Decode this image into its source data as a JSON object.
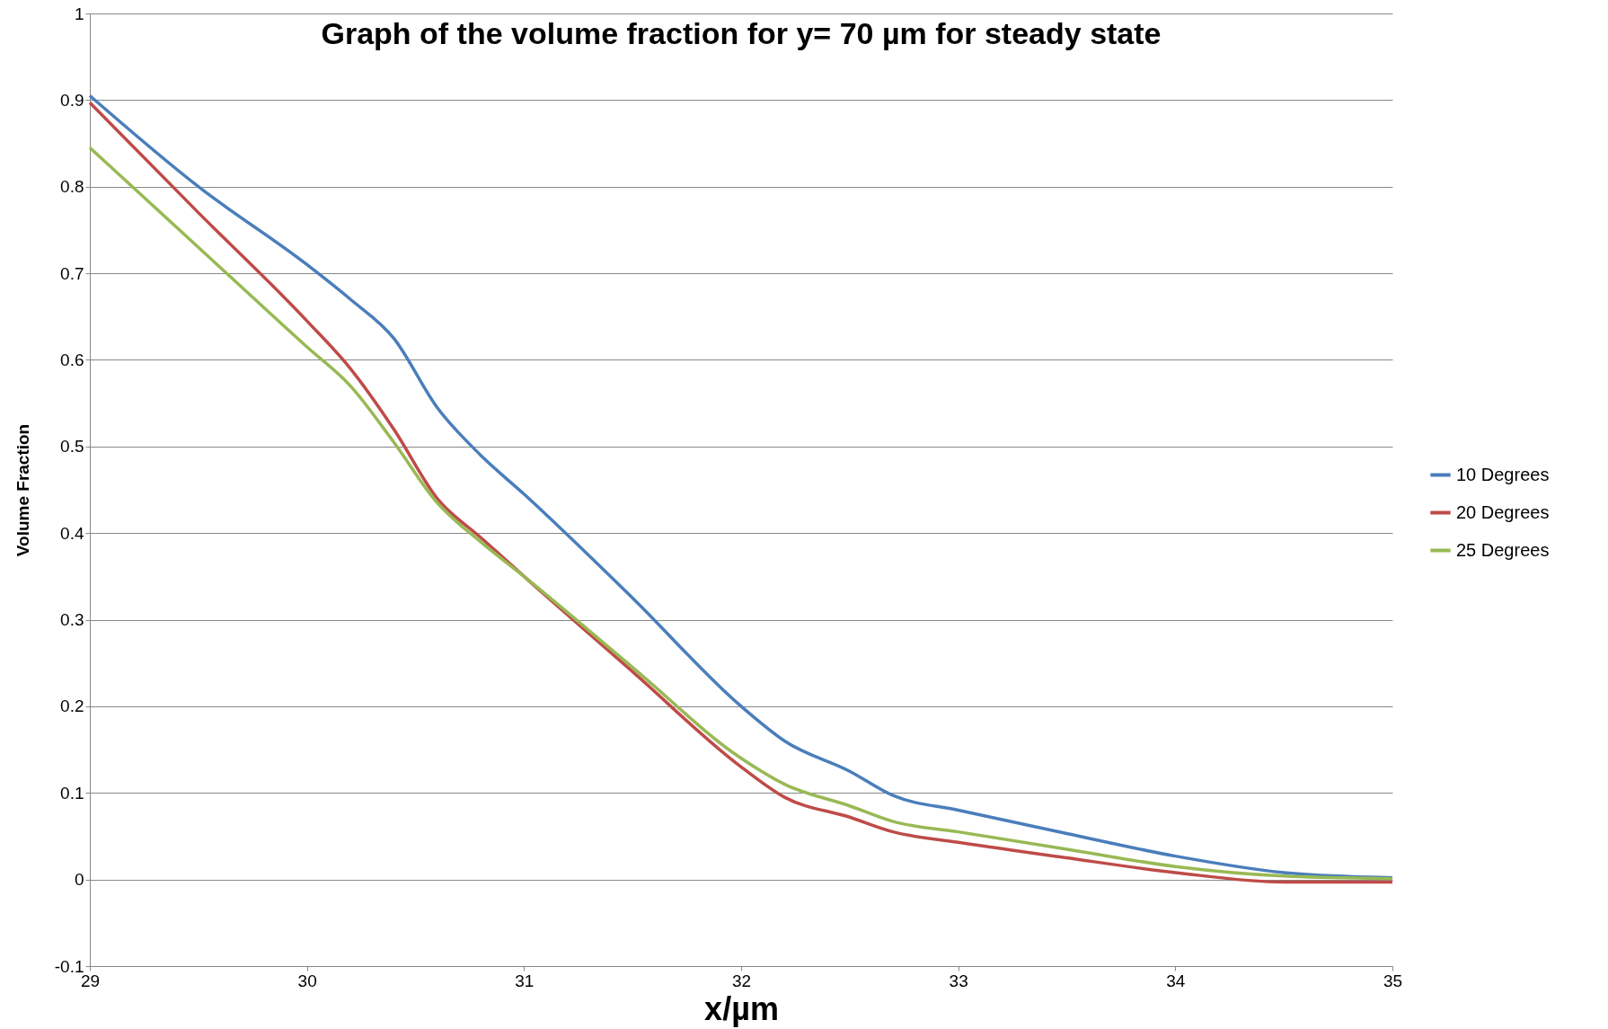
{
  "chart_data": {
    "type": "line",
    "title": "Graph of the volume fraction for y= 70 µm for steady state",
    "xlabel": "x/µm",
    "ylabel": "Volume Fraction",
    "xlim": [
      29,
      35
    ],
    "xticks": [
      29,
      30,
      31,
      32,
      33,
      34,
      35
    ],
    "ylim": [
      -0.1,
      1
    ],
    "yticks": [
      -0.1,
      0,
      0.1,
      0.2,
      0.3,
      0.4,
      0.5,
      0.6,
      0.7,
      0.8,
      0.9,
      1
    ],
    "grid": "y",
    "legend": "right",
    "marker": "none",
    "line_style": "solid",
    "x": [
      29,
      29.5,
      30,
      30.2,
      30.4,
      30.6,
      30.8,
      31,
      31.5,
      32,
      32.2,
      32.5,
      32.7,
      33,
      33.5,
      34,
      34.5,
      35
    ],
    "series": [
      {
        "name": "10 Degrees",
        "color": "#4a7ebb",
        "values": [
          0.905,
          0.8,
          0.71,
          0.67,
          0.625,
          0.545,
          0.49,
          0.445,
          0.325,
          0.2,
          0.16,
          0.125,
          0.097,
          0.08,
          0.053,
          0.027,
          0.008,
          0.002
        ]
      },
      {
        "name": "20 Degrees",
        "color": "#be4b48",
        "values": [
          0.897,
          0.77,
          0.645,
          0.59,
          0.52,
          0.44,
          0.395,
          0.35,
          0.24,
          0.13,
          0.095,
          0.072,
          0.055,
          0.043,
          0.025,
          0.008,
          -0.003,
          -0.003
        ]
      },
      {
        "name": "25 Degrees",
        "color": "#98b954",
        "values": [
          0.845,
          0.73,
          0.615,
          0.57,
          0.505,
          0.435,
          0.39,
          0.35,
          0.245,
          0.14,
          0.11,
          0.085,
          0.067,
          0.055,
          0.035,
          0.015,
          0.004,
          0.001
        ]
      }
    ]
  }
}
